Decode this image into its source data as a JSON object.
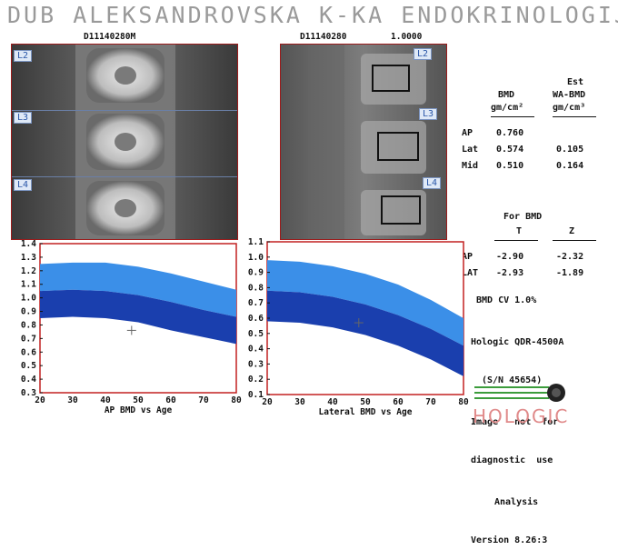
{
  "header": {
    "title": "DUB ALEKSANDROVSKA K-KA ENDOKRINOLOGIJA"
  },
  "scans": {
    "ap": {
      "id": "D11140280M",
      "levels": [
        "L2",
        "L3",
        "L4"
      ]
    },
    "lateral": {
      "id": "D11140280",
      "zoom": "1.0000",
      "levels": [
        "L2",
        "L3",
        "L4"
      ]
    }
  },
  "results": {
    "col_bmd": "BMD",
    "col_est1": "Est",
    "col_est2": "WA-BMD",
    "unit1": "gm/cm²",
    "unit2": "gm/cm³",
    "rows": [
      {
        "label": "AP",
        "bmd": "0.760",
        "wa": ""
      },
      {
        "label": "Lat",
        "bmd": "0.574",
        "wa": "0.105"
      },
      {
        "label": "Mid",
        "bmd": "0.510",
        "wa": "0.164"
      }
    ]
  },
  "scores": {
    "heading": "For BMD",
    "t_label": "T",
    "z_label": "Z",
    "rows": [
      {
        "label": "AP",
        "t": "-2.90",
        "z": "-2.32"
      },
      {
        "label": "LAT",
        "t": "-2.93",
        "z": "-1.89"
      }
    ]
  },
  "info": {
    "cv": "BMD CV 1.0%",
    "device": "Hologic QDR-4500A",
    "serial": "(S/N 45654)",
    "disclaimer1": "Image   not  for",
    "disclaimer2": "diagnostic  use",
    "analysis": "Analysis",
    "version": "Version 8.26:3"
  },
  "logo": {
    "text": "HOLOGIC"
  },
  "colors": {
    "band_light": "#3b8fe8",
    "band_dark": "#1a3fae",
    "frame": "#c22020"
  },
  "chart_data": [
    {
      "type": "area",
      "xlabel": "AP BMD vs Age",
      "x_ticks": [
        "20",
        "30",
        "40",
        "50",
        "60",
        "70",
        "80"
      ],
      "y_ticks": [
        "1.4",
        "1.3",
        "1.2",
        "1.1",
        "1.0",
        "0.9",
        "0.8",
        "0.7",
        "0.6",
        "0.5",
        "0.4",
        "0.3"
      ],
      "xlim": [
        20,
        80
      ],
      "ylim": [
        0.3,
        1.4
      ],
      "outer_upper": [
        {
          "x": 20,
          "y": 1.25
        },
        {
          "x": 30,
          "y": 1.26
        },
        {
          "x": 40,
          "y": 1.26
        },
        {
          "x": 50,
          "y": 1.23
        },
        {
          "x": 60,
          "y": 1.18
        },
        {
          "x": 70,
          "y": 1.12
        },
        {
          "x": 80,
          "y": 1.06
        }
      ],
      "mid": [
        {
          "x": 20,
          "y": 1.05
        },
        {
          "x": 30,
          "y": 1.06
        },
        {
          "x": 40,
          "y": 1.05
        },
        {
          "x": 50,
          "y": 1.02
        },
        {
          "x": 60,
          "y": 0.97
        },
        {
          "x": 70,
          "y": 0.91
        },
        {
          "x": 80,
          "y": 0.86
        }
      ],
      "outer_lower": [
        {
          "x": 20,
          "y": 0.85
        },
        {
          "x": 30,
          "y": 0.86
        },
        {
          "x": 40,
          "y": 0.85
        },
        {
          "x": 50,
          "y": 0.82
        },
        {
          "x": 60,
          "y": 0.76
        },
        {
          "x": 70,
          "y": 0.71
        },
        {
          "x": 80,
          "y": 0.66
        }
      ],
      "patient": {
        "x": 48,
        "y": 0.76
      }
    },
    {
      "type": "area",
      "xlabel": "Lateral BMD vs Age",
      "x_ticks": [
        "20",
        "30",
        "40",
        "50",
        "60",
        "70",
        "80"
      ],
      "y_ticks": [
        "1.1",
        "1.0",
        "0.9",
        "0.8",
        "0.7",
        "0.6",
        "0.5",
        "0.4",
        "0.3",
        "0.2",
        "0.1"
      ],
      "xlim": [
        20,
        80
      ],
      "ylim": [
        0.1,
        1.1
      ],
      "outer_upper": [
        {
          "x": 20,
          "y": 0.98
        },
        {
          "x": 30,
          "y": 0.97
        },
        {
          "x": 40,
          "y": 0.94
        },
        {
          "x": 50,
          "y": 0.89
        },
        {
          "x": 60,
          "y": 0.82
        },
        {
          "x": 70,
          "y": 0.72
        },
        {
          "x": 80,
          "y": 0.6
        }
      ],
      "mid": [
        {
          "x": 20,
          "y": 0.78
        },
        {
          "x": 30,
          "y": 0.77
        },
        {
          "x": 40,
          "y": 0.74
        },
        {
          "x": 50,
          "y": 0.69
        },
        {
          "x": 60,
          "y": 0.62
        },
        {
          "x": 70,
          "y": 0.53
        },
        {
          "x": 80,
          "y": 0.42
        }
      ],
      "outer_lower": [
        {
          "x": 20,
          "y": 0.58
        },
        {
          "x": 30,
          "y": 0.57
        },
        {
          "x": 40,
          "y": 0.54
        },
        {
          "x": 50,
          "y": 0.49
        },
        {
          "x": 60,
          "y": 0.42
        },
        {
          "x": 70,
          "y": 0.33
        },
        {
          "x": 80,
          "y": 0.22
        }
      ],
      "patient": {
        "x": 48,
        "y": 0.57
      }
    }
  ]
}
